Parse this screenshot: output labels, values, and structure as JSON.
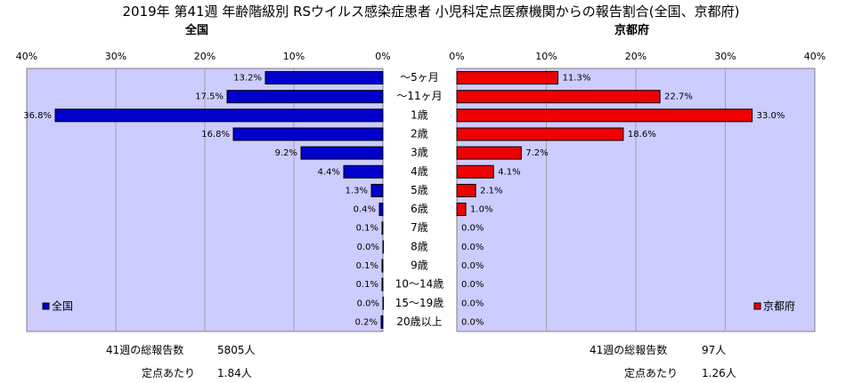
{
  "title": "2019年 第41週 年齢階級別 RSウイルス感染症患者 小児科定点医療機関からの報告割合(全国、京都府)",
  "left_label": "全国",
  "right_label": "京都府",
  "footer": {
    "left_total_label": "41週の総報告数",
    "left_total_value": "5805人",
    "left_per_label": "定点あたり",
    "left_per_value": "1.84人",
    "right_total_label": "41週の総報告数",
    "right_total_value": "97人",
    "right_per_label": "定点あたり",
    "right_per_value": "1.26人"
  },
  "colors": {
    "nation": "#0000cc",
    "kyoto": "#ee0000",
    "plot_bg": "#ccccff"
  },
  "chart_data": [
    {
      "type": "bar",
      "orientation": "horizontal",
      "direction": "reversed",
      "title": "全国",
      "categories": [
        "～5ヶ月",
        "～11ヶ月",
        "1歳",
        "2歳",
        "3歳",
        "4歳",
        "5歳",
        "6歳",
        "7歳",
        "8歳",
        "9歳",
        "10～14歳",
        "15～19歳",
        "20歳以上"
      ],
      "series": [
        {
          "name": "全国",
          "values": [
            13.2,
            17.5,
            36.8,
            16.8,
            9.2,
            4.4,
            1.3,
            0.4,
            0.1,
            0.0,
            0.1,
            0.1,
            0.0,
            0.2
          ]
        }
      ],
      "value_labels": [
        "13.2%",
        "17.5%",
        "36.8%",
        "16.8%",
        "9.2%",
        "4.4%",
        "1.3%",
        "0.4%",
        "0.1%",
        "0.0%",
        "0.1%",
        "0.1%",
        "0.0%",
        "0.2%"
      ],
      "ticks": [
        "40%",
        "30%",
        "20%",
        "10%",
        "0%"
      ],
      "xlim": [
        0,
        40
      ],
      "grid": true,
      "legend": "bottom-left"
    },
    {
      "type": "bar",
      "orientation": "horizontal",
      "title": "京都府",
      "categories": [
        "～5ヶ月",
        "～11ヶ月",
        "1歳",
        "2歳",
        "3歳",
        "4歳",
        "5歳",
        "6歳",
        "7歳",
        "8歳",
        "9歳",
        "10～14歳",
        "15～19歳",
        "20歳以上"
      ],
      "series": [
        {
          "name": "京都府",
          "values": [
            11.3,
            22.7,
            33.0,
            18.6,
            7.2,
            4.1,
            2.1,
            1.0,
            0.0,
            0.0,
            0.0,
            0.0,
            0.0,
            0.0
          ]
        }
      ],
      "value_labels": [
        "11.3%",
        "22.7%",
        "33.0%",
        "18.6%",
        "7.2%",
        "4.1%",
        "2.1%",
        "1.0%",
        "0.0%",
        "0.0%",
        "0.0%",
        "0.0%",
        "0.0%",
        "0.0%"
      ],
      "ticks": [
        "0%",
        "10%",
        "20%",
        "30%",
        "40%"
      ],
      "xlim": [
        0,
        40
      ],
      "grid": true,
      "legend": "bottom-right"
    }
  ]
}
